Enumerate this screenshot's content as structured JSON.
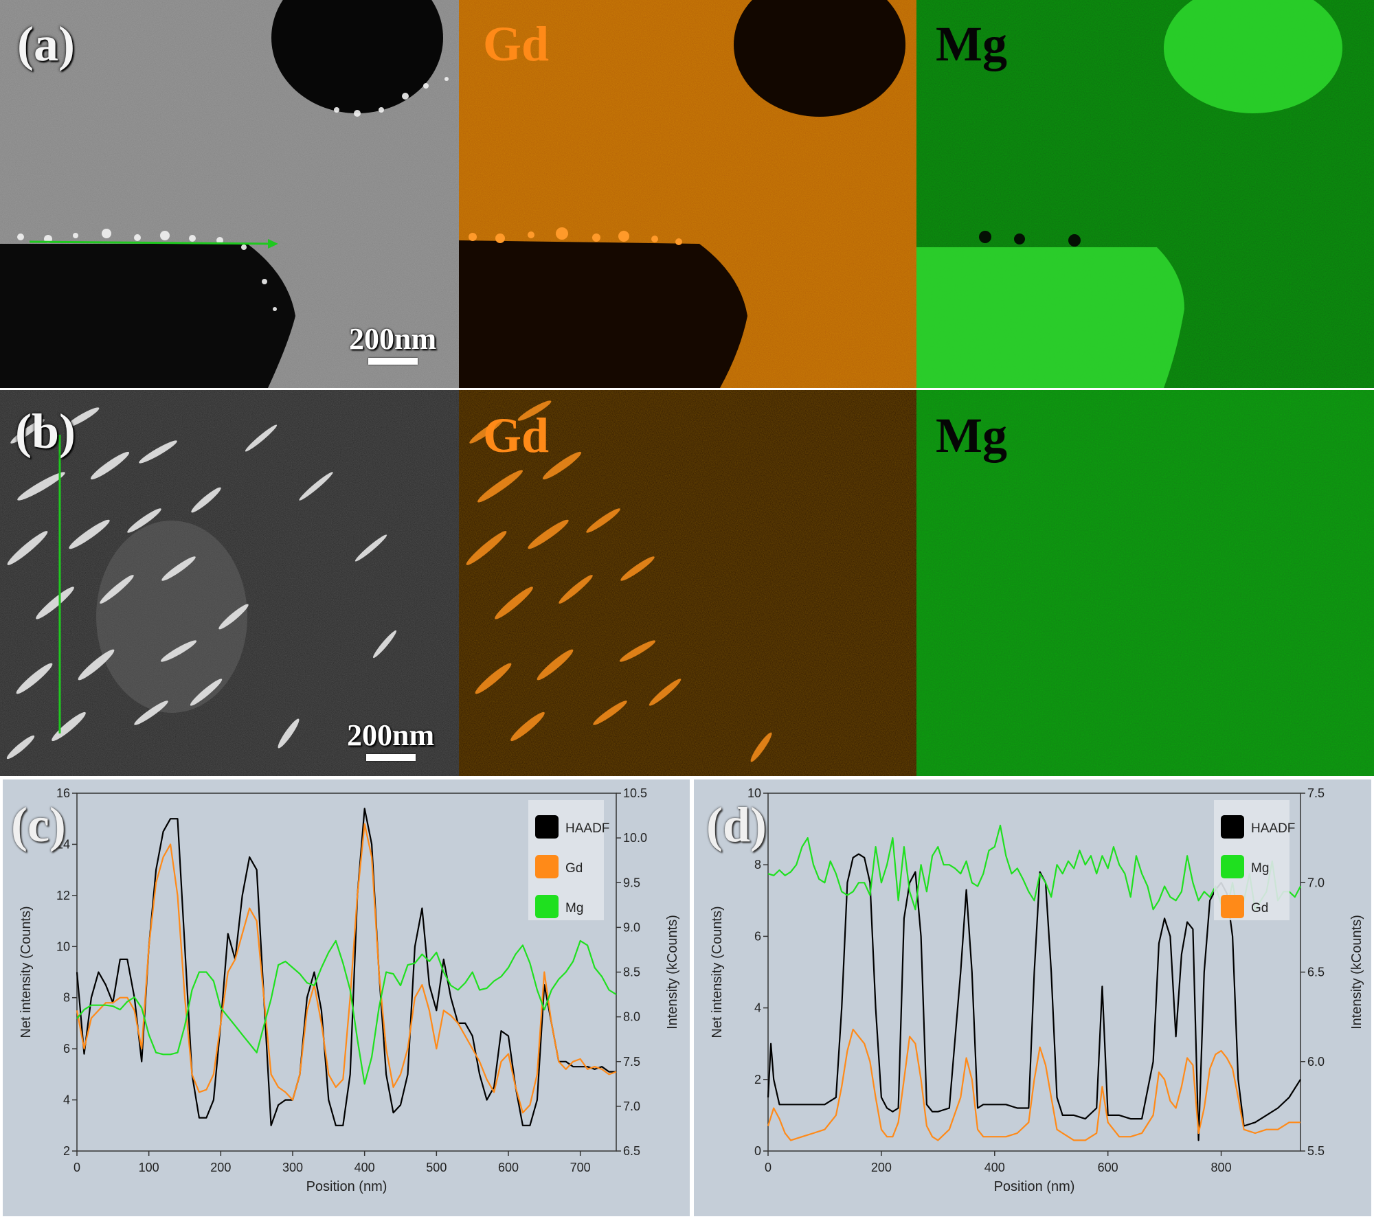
{
  "figure": {
    "panels": {
      "a": {
        "label": "(a)",
        "scale": "200nm"
      },
      "b": {
        "label": "(b)",
        "scale": "200nm"
      },
      "c": {
        "label": "(c)"
      },
      "d": {
        "label": "(d)"
      }
    },
    "map_labels": {
      "gd": "Gd",
      "mg": "Mg"
    },
    "colors": {
      "gd": "#ff8a18",
      "mg": "#1fe01f",
      "haadf": "#000000",
      "plot_bg": "#c5ced8"
    }
  },
  "chart_data": [
    {
      "type": "line",
      "panel": "(c)",
      "xlabel": "Position (nm)",
      "ylabel_left": "Net intensity (Counts)",
      "ylabel_right": "Intensity (kCounts)",
      "xlim": [
        0,
        750
      ],
      "ylim_left": [
        2,
        16
      ],
      "ylim_right": [
        6.5,
        10.5
      ],
      "xticks": [
        0,
        100,
        200,
        300,
        400,
        500,
        600,
        700
      ],
      "yticks_left": [
        2,
        4,
        6,
        8,
        10,
        12,
        14,
        16
      ],
      "yticks_right": [
        "6.5",
        "7.0",
        "7.5",
        "8.0",
        "8.5",
        "9.0",
        "9.5",
        "10.0",
        "10.5"
      ],
      "legend": [
        "HAADF",
        "Gd",
        "Mg"
      ],
      "legend_position": "top-right",
      "series": [
        {
          "name": "HAADF",
          "axis": "left",
          "color": "#000000",
          "x": [
            0,
            10,
            20,
            30,
            40,
            50,
            60,
            70,
            80,
            90,
            100,
            110,
            120,
            130,
            140,
            150,
            160,
            170,
            180,
            190,
            200,
            210,
            220,
            230,
            240,
            250,
            260,
            270,
            280,
            290,
            300,
            310,
            320,
            330,
            340,
            350,
            360,
            370,
            380,
            390,
            400,
            410,
            420,
            430,
            440,
            450,
            460,
            470,
            480,
            490,
            500,
            510,
            520,
            530,
            540,
            550,
            560,
            570,
            580,
            590,
            600,
            610,
            620,
            630,
            640,
            650,
            660,
            670,
            680,
            690,
            700,
            710,
            720,
            730,
            740,
            750
          ],
          "values": [
            9,
            5.8,
            8,
            9,
            8.5,
            7.8,
            9.5,
            9.5,
            8,
            5.5,
            10,
            13,
            14.5,
            15,
            15,
            10,
            5,
            3.3,
            3.3,
            4,
            7,
            10.5,
            9.5,
            12,
            13.5,
            13,
            8,
            3,
            3.8,
            4,
            4,
            5,
            8,
            9,
            7.5,
            4,
            3,
            3,
            5,
            12,
            15.4,
            14,
            9,
            5,
            3.5,
            3.8,
            5,
            10,
            11.5,
            8.5,
            7.5,
            9.5,
            8,
            7,
            7,
            6.5,
            5,
            4,
            4.5,
            6.7,
            6.5,
            4.5,
            3,
            3,
            4,
            8.5,
            7,
            5.5,
            5.5,
            5.3,
            5.3,
            5.3,
            5.2,
            5.3,
            5.1,
            5.1
          ]
        },
        {
          "name": "Gd",
          "axis": "left",
          "color": "#ff8a18",
          "x": [
            0,
            10,
            20,
            30,
            40,
            50,
            60,
            70,
            80,
            90,
            100,
            110,
            120,
            130,
            140,
            150,
            160,
            170,
            180,
            190,
            200,
            210,
            220,
            230,
            240,
            250,
            260,
            270,
            280,
            290,
            300,
            310,
            320,
            330,
            340,
            350,
            360,
            370,
            380,
            390,
            400,
            410,
            420,
            430,
            440,
            450,
            460,
            470,
            480,
            490,
            500,
            510,
            520,
            530,
            540,
            550,
            560,
            570,
            580,
            590,
            600,
            610,
            620,
            630,
            640,
            650,
            660,
            670,
            680,
            690,
            700,
            710,
            720,
            730,
            740,
            750
          ],
          "values": [
            7.5,
            6,
            7.2,
            7.5,
            7.8,
            7.8,
            8,
            8,
            7.5,
            6,
            10,
            12.5,
            13.5,
            14,
            12,
            8,
            5,
            4.3,
            4.4,
            5,
            7,
            9,
            9.5,
            10.5,
            11.5,
            11,
            8,
            5,
            4.5,
            4.3,
            4,
            5,
            7.5,
            8.5,
            7,
            5,
            4.5,
            4.8,
            8,
            12,
            14.8,
            13.5,
            9,
            6,
            4.5,
            5,
            6,
            8,
            8.5,
            7.5,
            6,
            7.5,
            7.3,
            7,
            6.5,
            6,
            5.5,
            4.8,
            4.3,
            5.5,
            5.8,
            4.5,
            3.5,
            3.8,
            5,
            9,
            7,
            5.5,
            5.2,
            5.5,
            5.6,
            5.2,
            5.3,
            5.2,
            5,
            5.1
          ]
        },
        {
          "name": "Mg",
          "axis": "right",
          "color": "#1fe01f",
          "x": [
            0,
            10,
            20,
            30,
            40,
            50,
            60,
            70,
            80,
            90,
            100,
            110,
            120,
            130,
            140,
            150,
            160,
            170,
            180,
            190,
            200,
            210,
            220,
            230,
            240,
            250,
            260,
            270,
            280,
            290,
            300,
            310,
            320,
            330,
            340,
            350,
            360,
            370,
            380,
            390,
            400,
            410,
            420,
            430,
            440,
            450,
            460,
            470,
            480,
            490,
            500,
            510,
            520,
            530,
            540,
            550,
            560,
            570,
            580,
            590,
            600,
            610,
            620,
            630,
            640,
            650,
            660,
            670,
            680,
            690,
            700,
            710,
            720,
            730,
            740,
            750
          ],
          "values": [
            7.98,
            8.08,
            8.13,
            8.13,
            8.13,
            8.12,
            8.08,
            8.17,
            8.22,
            8.1,
            7.8,
            7.6,
            7.58,
            7.58,
            7.6,
            7.9,
            8.3,
            8.5,
            8.5,
            8.4,
            8.1,
            8,
            7.9,
            7.8,
            7.7,
            7.6,
            7.9,
            8.2,
            8.58,
            8.62,
            8.55,
            8.48,
            8.38,
            8.35,
            8.55,
            8.72,
            8.85,
            8.6,
            8.3,
            7.75,
            7.25,
            7.55,
            8.1,
            8.5,
            8.48,
            8.35,
            8.58,
            8.6,
            8.7,
            8.62,
            8.72,
            8.5,
            8.35,
            8.3,
            8.38,
            8.5,
            8.3,
            8.32,
            8.4,
            8.45,
            8.55,
            8.7,
            8.8,
            8.6,
            8.3,
            8.08,
            8.3,
            8.42,
            8.5,
            8.62,
            8.85,
            8.8,
            8.55,
            8.45,
            8.3,
            8.25
          ]
        }
      ]
    },
    {
      "type": "line",
      "panel": "(d)",
      "xlabel": "Position (nm)",
      "ylabel_left": "Net intensity (Counts)",
      "ylabel_right": "Intensity (kCounts)",
      "xlim": [
        0,
        940
      ],
      "ylim_left": [
        0,
        10
      ],
      "ylim_right": [
        5.5,
        7.5
      ],
      "xticks": [
        0,
        200,
        400,
        600,
        800
      ],
      "yticks_left": [
        0,
        2,
        4,
        6,
        8,
        10
      ],
      "yticks_right": [
        "5.5",
        "6.0",
        "6.5",
        "7.0",
        "7.5"
      ],
      "legend": [
        "HAADF",
        "Mg",
        "Gd"
      ],
      "legend_position": "top-right",
      "series": [
        {
          "name": "HAADF",
          "axis": "left",
          "color": "#000000",
          "x": [
            0,
            5,
            10,
            20,
            40,
            60,
            80,
            100,
            120,
            130,
            140,
            150,
            160,
            170,
            180,
            190,
            200,
            210,
            220,
            230,
            240,
            250,
            260,
            270,
            280,
            290,
            300,
            320,
            340,
            350,
            360,
            370,
            380,
            400,
            420,
            440,
            460,
            470,
            480,
            490,
            500,
            510,
            520,
            540,
            560,
            580,
            590,
            600,
            620,
            640,
            660,
            680,
            690,
            700,
            710,
            720,
            730,
            740,
            750,
            760,
            770,
            780,
            790,
            800,
            810,
            820,
            830,
            840,
            860,
            880,
            900,
            920,
            940
          ],
          "values": [
            1.5,
            3,
            2,
            1.3,
            1.3,
            1.3,
            1.3,
            1.3,
            1.5,
            4,
            7.5,
            8.2,
            8.3,
            8.2,
            7.5,
            4,
            1.5,
            1.2,
            1.1,
            1.2,
            6.5,
            7.5,
            7.8,
            6,
            1.3,
            1.1,
            1.1,
            1.2,
            5,
            7.3,
            5,
            1.2,
            1.3,
            1.3,
            1.3,
            1.2,
            1.2,
            5,
            7.8,
            7.5,
            5,
            1.5,
            1,
            1,
            0.9,
            1.2,
            4.6,
            1,
            1,
            0.9,
            0.9,
            2.5,
            5.8,
            6.5,
            6,
            3.2,
            5.5,
            6.4,
            6.2,
            0.3,
            5,
            7,
            7.3,
            7.5,
            7.2,
            6,
            2,
            0.7,
            0.8,
            1,
            1.2,
            1.5,
            2
          ]
        },
        {
          "name": "Mg",
          "axis": "right",
          "color": "#1fe01f",
          "x": [
            0,
            10,
            20,
            30,
            40,
            50,
            60,
            70,
            80,
            90,
            100,
            110,
            120,
            130,
            140,
            150,
            160,
            170,
            180,
            190,
            200,
            210,
            220,
            230,
            240,
            250,
            260,
            270,
            280,
            290,
            300,
            310,
            320,
            330,
            340,
            350,
            360,
            370,
            380,
            390,
            400,
            410,
            420,
            430,
            440,
            450,
            460,
            470,
            480,
            490,
            500,
            510,
            520,
            530,
            540,
            550,
            560,
            570,
            580,
            590,
            600,
            610,
            620,
            630,
            640,
            650,
            660,
            670,
            680,
            690,
            700,
            710,
            720,
            730,
            740,
            750,
            760,
            770,
            780,
            790,
            800,
            810,
            820,
            830,
            840,
            850,
            860,
            870,
            880,
            890,
            900,
            910,
            920,
            930,
            940
          ],
          "values": [
            7.05,
            7.04,
            7.07,
            7.04,
            7.06,
            7.1,
            7.2,
            7.25,
            7.1,
            7.02,
            7,
            7.12,
            7.05,
            6.95,
            6.93,
            6.95,
            7,
            7,
            6.93,
            7.2,
            7,
            7.1,
            7.25,
            6.9,
            7.2,
            6.95,
            6.85,
            7.1,
            6.95,
            7.15,
            7.2,
            7.1,
            7.1,
            7.08,
            7.05,
            7.12,
            7,
            6.98,
            7.05,
            7.18,
            7.2,
            7.32,
            7.15,
            7.05,
            7.08,
            7.02,
            6.95,
            6.9,
            7.05,
            7,
            6.92,
            7.1,
            7.05,
            7.12,
            7.08,
            7.18,
            7.1,
            7.15,
            7.05,
            7.15,
            7.08,
            7.2,
            7.1,
            7.05,
            6.92,
            7.15,
            7.05,
            6.98,
            6.85,
            6.9,
            6.98,
            6.92,
            6.9,
            6.95,
            7.15,
            7,
            6.9,
            6.95,
            6.92,
            6.98,
            6.88,
            6.85,
            7,
            6.82,
            6.9,
            7.05,
            6.85,
            6.9,
            6.95,
            7.12,
            6.9,
            6.95,
            6.95,
            6.92,
            6.98
          ]
        },
        {
          "name": "Gd",
          "axis": "left",
          "color": "#ff8a18",
          "x": [
            0,
            10,
            20,
            30,
            40,
            60,
            80,
            100,
            120,
            130,
            140,
            150,
            160,
            170,
            180,
            190,
            200,
            210,
            220,
            230,
            240,
            250,
            260,
            270,
            280,
            290,
            300,
            320,
            340,
            350,
            360,
            370,
            380,
            400,
            420,
            440,
            460,
            470,
            480,
            490,
            500,
            510,
            520,
            540,
            560,
            580,
            590,
            600,
            620,
            640,
            660,
            680,
            690,
            700,
            710,
            720,
            730,
            740,
            750,
            760,
            770,
            780,
            790,
            800,
            810,
            820,
            830,
            840,
            860,
            880,
            900,
            920,
            940
          ],
          "values": [
            0.7,
            1.2,
            0.9,
            0.5,
            0.3,
            0.4,
            0.5,
            0.6,
            1,
            1.8,
            2.8,
            3.4,
            3.2,
            3,
            2.5,
            1.5,
            0.6,
            0.4,
            0.4,
            0.8,
            2,
            3.2,
            3,
            2,
            0.7,
            0.4,
            0.3,
            0.6,
            1.5,
            2.6,
            2,
            0.6,
            0.4,
            0.4,
            0.4,
            0.5,
            0.8,
            2,
            2.9,
            2.4,
            1.5,
            0.6,
            0.5,
            0.3,
            0.3,
            0.5,
            1.8,
            0.8,
            0.4,
            0.4,
            0.5,
            1,
            2.2,
            2,
            1.4,
            1.2,
            1.8,
            2.6,
            2.4,
            0.5,
            1.2,
            2.3,
            2.7,
            2.8,
            2.6,
            2.3,
            1.5,
            0.6,
            0.5,
            0.6,
            0.6,
            0.8,
            0.8
          ]
        }
      ]
    }
  ]
}
